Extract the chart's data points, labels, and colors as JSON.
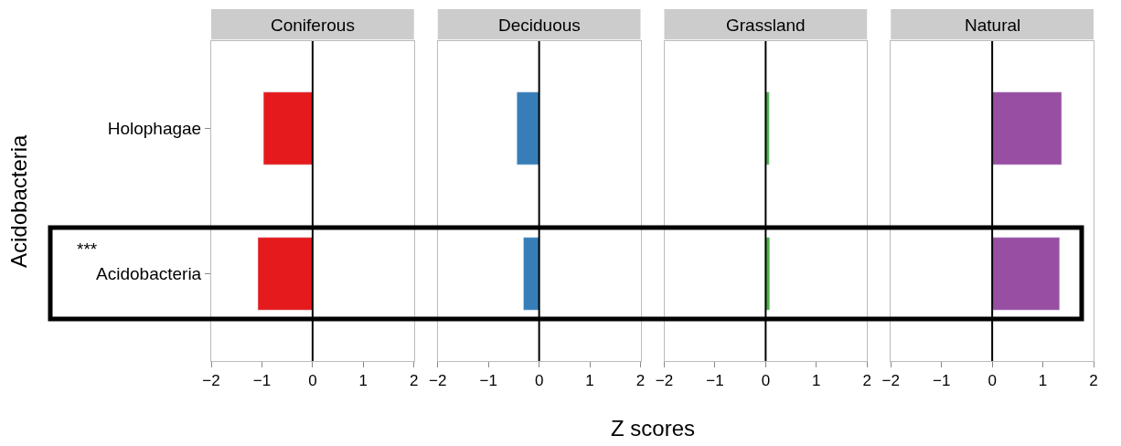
{
  "chart_data": [
    {
      "type": "bar",
      "orientation": "horizontal",
      "title": "Coniferous",
      "ylabel": "Acidobacteria",
      "categories": [
        "Holophagae",
        "Acidobacteria"
      ],
      "values": [
        -0.97,
        -1.08
      ],
      "color": "#e41a1c",
      "xlim": [
        -2,
        2
      ],
      "xticks": [
        -2,
        -1,
        0,
        1,
        2
      ],
      "ref_lines": [
        {
          "axis": "x",
          "value": 0,
          "color": "#000000"
        }
      ],
      "annotations": [
        "***"
      ]
    },
    {
      "type": "bar",
      "orientation": "horizontal",
      "title": "Deciduous",
      "xlabel": "Z scores",
      "categories": [
        "Holophagae",
        "Acidobacteria"
      ],
      "values": [
        -0.44,
        -0.31
      ],
      "color": "#377eb8",
      "xlim": [
        -2,
        2
      ],
      "xticks": [
        -2,
        -1,
        0,
        1,
        2
      ],
      "tick_labels": "x",
      "ref_lines": [
        {
          "axis": "x",
          "value": 0,
          "color": "#000000"
        }
      ]
    },
    {
      "type": "bar",
      "orientation": "horizontal",
      "title": "Grassland",
      "categories": [
        "Holophagae",
        "Acidobacteria"
      ],
      "values": [
        0.07,
        0.08
      ],
      "color": "#4daf4a",
      "xlim": [
        -2,
        2
      ],
      "xticks": [
        -2,
        -1,
        0,
        1,
        2
      ],
      "tick_labels": "x",
      "ref_lines": [
        {
          "axis": "x",
          "value": 0,
          "color": "#000000"
        }
      ]
    },
    {
      "type": "bar",
      "orientation": "horizontal",
      "title": "Natural",
      "categories": [
        "Holophagae",
        "Acidobacteria"
      ],
      "values": [
        1.37,
        1.33
      ],
      "color": "#984ea3",
      "xlim": [
        -2,
        2
      ],
      "xticks": [
        -2,
        -1,
        0,
        1,
        2
      ],
      "tick_labels": "x",
      "ref_lines": [
        {
          "axis": "x",
          "value": 0,
          "color": "#000000"
        }
      ]
    }
  ]
}
